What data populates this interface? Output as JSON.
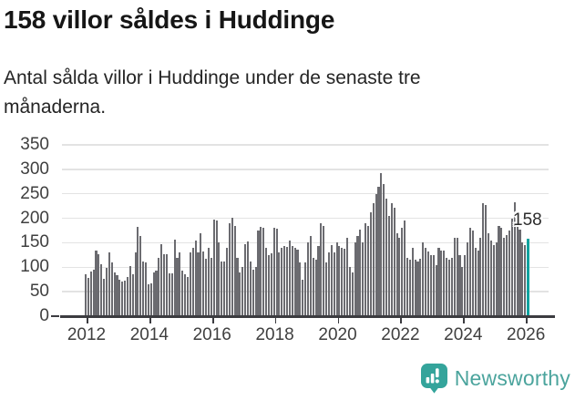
{
  "header": {
    "title": "158 villor såldes i Huddinge",
    "subtitle": "Antal sålda villor i Huddinge under de senaste tre månaderna.",
    "subtitle_line1": "Antal sålda villor i Huddinge under de senaste tre",
    "subtitle_line2": "månaderna."
  },
  "chart_data": {
    "type": "bar",
    "title": "158 villor såldes i Huddinge",
    "subtitle": "Antal sålda villor i Huddinge under de senaste tre månaderna.",
    "x_start": "2012-01",
    "x_interval": "month",
    "x_tick_labels": [
      "2012",
      "2014",
      "2016",
      "2018",
      "2020",
      "2022",
      "2024",
      "2026"
    ],
    "y_tick_labels": [
      "0",
      "50",
      "100",
      "150",
      "200",
      "250",
      "300",
      "350"
    ],
    "ylim": [
      0,
      350
    ],
    "grid": "horizontal",
    "legend": "none",
    "bar_color": "#6b6b70",
    "highlight_color": "#0ea29e",
    "annotation": {
      "label": "158",
      "target": "last_bar"
    },
    "series": [
      {
        "name": "Antal sålda villor",
        "values": [
          85,
          78,
          92,
          95,
          134,
          126,
          107,
          76,
          99,
          130,
          110,
          90,
          84,
          74,
          70,
          72,
          81,
          103,
          86,
          130,
          182,
          163,
          111,
          110,
          65,
          67,
          90,
          93,
          120,
          148,
          127,
          126,
          88,
          87,
          157,
          120,
          130,
          93,
          85,
          80,
          130,
          139,
          155,
          131,
          170,
          133,
          118,
          140,
          120,
          197,
          196,
          150,
          112,
          111,
          140,
          190,
          201,
          184,
          120,
          90,
          100,
          148,
          153,
          111,
          95,
          100,
          175,
          183,
          180,
          140,
          125,
          128,
          180,
          179,
          130,
          140,
          143,
          142,
          155,
          143,
          140,
          136,
          110,
          75,
          110,
          150,
          163,
          120,
          115,
          143,
          190,
          185,
          110,
          130,
          145,
          130,
          150,
          143,
          140,
          138,
          160,
          100,
          90,
          150,
          163,
          177,
          150,
          190,
          185,
          212,
          230,
          249,
          265,
          292,
          270,
          240,
          205,
          230,
          222,
          170,
          160,
          180,
          195,
          120,
          115,
          140,
          115,
          112,
          118,
          150,
          140,
          132,
          125,
          125,
          105,
          140,
          135,
          135,
          120,
          115,
          120,
          160,
          160,
          125,
          100,
          125,
          150,
          180,
          175,
          140,
          135,
          160,
          230,
          228,
          170,
          155,
          145,
          150,
          185,
          180,
          160,
          165,
          175,
          200,
          232,
          184,
          177,
          150,
          145,
          158
        ]
      }
    ]
  },
  "footer": {
    "brand": "Newsworthy",
    "brand_color": "#4ba49d",
    "logo_icon": "newsworthy-bubble-chart-icon"
  }
}
